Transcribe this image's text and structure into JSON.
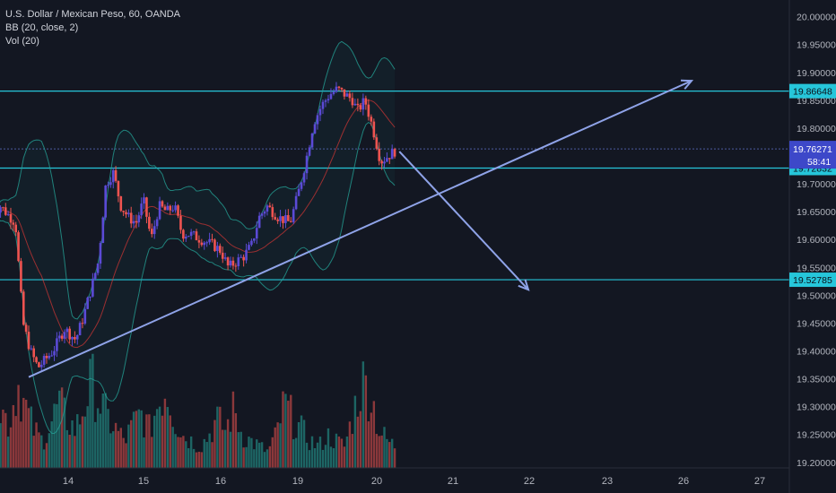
{
  "legend": {
    "symbol": "U.S. Dollar / Mexican Peso, 60, OANDA",
    "bb": "BB (20, close, 2)",
    "vol": "Vol (20)"
  },
  "colors": {
    "background": "#131722",
    "text": "#b2b5be",
    "hline": "#26c6da",
    "bull": "#5b4ad6",
    "bear": "#ef5350",
    "band": "#26a69a",
    "basis": "#e53935",
    "arrow": "#8fa3e8",
    "current_price_bg": "#3d48c9",
    "vol_up": "#26a69a",
    "vol_down": "#ef5350"
  },
  "chart_data": {
    "type": "candlestick",
    "symbol": "USDMXN",
    "timeframe": "60",
    "ylim": [
      19.19,
      20.03
    ],
    "y_ticks": [
      19.2,
      19.25,
      19.3,
      19.35,
      19.4,
      19.45,
      19.5,
      19.55,
      19.6,
      19.65,
      19.7,
      19.75,
      19.8,
      19.85,
      19.9,
      19.95,
      20.0
    ],
    "x_ticks": [
      "14",
      "15",
      "16",
      "19",
      "20",
      "21",
      "22",
      "23",
      "26",
      "27"
    ],
    "levels": [
      {
        "price": 19.86648,
        "label": "19.86648"
      },
      {
        "price": 19.72832,
        "label": "19.72832"
      },
      {
        "price": 19.52785,
        "label": "19.52785"
      }
    ],
    "current_price": {
      "price": 19.76271,
      "label": "19.76271",
      "countdown": "58:41"
    },
    "trendline": {
      "from": [
        "13",
        19.353
      ],
      "to": [
        "27",
        19.885
      ]
    },
    "projection": {
      "from": [
        "20",
        19.758
      ],
      "to": [
        "22",
        19.51
      ]
    },
    "close_path": [
      [
        13.0,
        19.65
      ],
      [
        13.1,
        19.66
      ],
      [
        13.3,
        19.63
      ],
      [
        13.4,
        19.45
      ],
      [
        13.5,
        19.4
      ],
      [
        13.6,
        19.37
      ],
      [
        13.8,
        19.4
      ],
      [
        13.95,
        19.44
      ],
      [
        14.1,
        19.42
      ],
      [
        14.2,
        19.46
      ],
      [
        14.3,
        19.51
      ],
      [
        14.4,
        19.56
      ],
      [
        14.5,
        19.7
      ],
      [
        14.6,
        19.72
      ],
      [
        14.7,
        19.66
      ],
      [
        14.8,
        19.64
      ],
      [
        14.9,
        19.63
      ],
      [
        15.0,
        19.67
      ],
      [
        15.1,
        19.6
      ],
      [
        15.2,
        19.66
      ],
      [
        15.3,
        19.65
      ],
      [
        15.4,
        19.66
      ],
      [
        15.5,
        19.61
      ],
      [
        15.6,
        19.61
      ],
      [
        15.75,
        19.6
      ],
      [
        15.9,
        19.59
      ],
      [
        16.0,
        19.58
      ],
      [
        16.1,
        19.55
      ],
      [
        16.2,
        19.56
      ],
      [
        16.3,
        19.57
      ],
      [
        16.4,
        19.59
      ],
      [
        16.5,
        19.64
      ],
      [
        16.6,
        19.66
      ],
      [
        16.75,
        19.64
      ],
      [
        16.9,
        19.63
      ],
      [
        17.0,
        19.68
      ],
      [
        17.1,
        19.74
      ],
      [
        17.2,
        19.81
      ],
      [
        17.3,
        19.84
      ],
      [
        17.4,
        19.86
      ],
      [
        17.5,
        19.87
      ],
      [
        17.6,
        19.86
      ],
      [
        17.7,
        19.85
      ],
      [
        17.75,
        19.83
      ],
      [
        17.85,
        19.85
      ],
      [
        17.95,
        19.8
      ],
      [
        18.05,
        19.74
      ],
      [
        18.15,
        19.75
      ],
      [
        18.25,
        19.76
      ]
    ],
    "volume_path": [
      0.3,
      0.55,
      0.4,
      0.8,
      0.55,
      0.35,
      0.25,
      0.4,
      0.6,
      0.45,
      0.35,
      0.55,
      0.8,
      0.6,
      0.45,
      0.35,
      0.25,
      0.4,
      0.5,
      0.35,
      0.6,
      0.75,
      0.45,
      0.3,
      0.25,
      0.2,
      0.3,
      0.45,
      0.35,
      0.55,
      0.3,
      0.25,
      0.2,
      0.15,
      0.3,
      0.6,
      0.45,
      0.35,
      0.25,
      0.2,
      0.3,
      0.25,
      0.2,
      0.5,
      0.8,
      0.7,
      0.35,
      0.25,
      0.2
    ]
  }
}
